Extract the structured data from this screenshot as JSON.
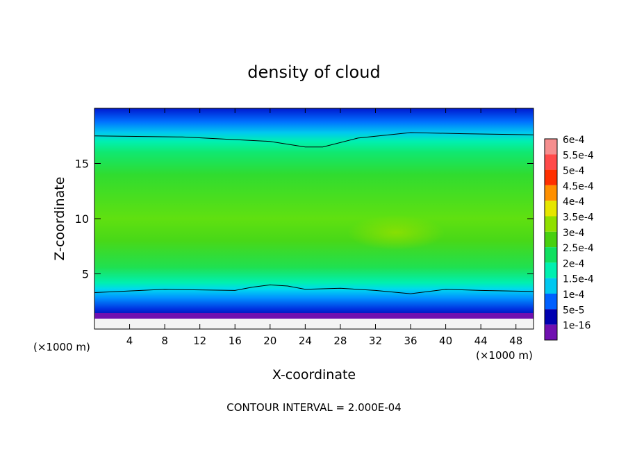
{
  "chart_data": {
    "type": "heatmap",
    "title": "density of cloud",
    "xlabel": "X-coordinate",
    "ylabel": "Z-coordinate",
    "x_unit": "(×1000 m)",
    "y_unit": "(×1000 m)",
    "x_ticks": [
      4,
      8,
      12,
      16,
      20,
      24,
      28,
      32,
      36,
      40,
      44,
      48
    ],
    "y_ticks": [
      5,
      10,
      15
    ],
    "xlim": [
      0,
      50
    ],
    "ylim": [
      0,
      20
    ],
    "footer": "CONTOUR INTERVAL = 2.000E-04",
    "contour_interval": 0.0002,
    "colorbar": {
      "labels": [
        "6e-4",
        "5.5e-4",
        "5e-4",
        "4.5e-4",
        "4e-4",
        "3.5e-4",
        "3e-4",
        "2.5e-4",
        "2e-4",
        "1.5e-4",
        "1e-4",
        "5e-5",
        "1e-16"
      ],
      "values": [
        0.0006,
        0.00055,
        0.0005,
        0.00045,
        0.0004,
        0.00035,
        0.0003,
        0.00025,
        0.0002,
        0.00015,
        0.0001,
        5e-05,
        1e-16
      ],
      "colors": [
        "#f58e8e",
        "#ff4a4a",
        "#ff3000",
        "#ff9000",
        "#e6e600",
        "#90e000",
        "#48d010",
        "#10e060",
        "#00f0b0",
        "#00c8f0",
        "#0060ff",
        "#0000b0",
        "#7010b0"
      ]
    },
    "profile": {
      "description": "density as a function of height, roughly uniform in x",
      "z": [
        0,
        1,
        2,
        3,
        3.5,
        4.5,
        6,
        8,
        10,
        12,
        14,
        16,
        17.5,
        18.5,
        20
      ],
      "density": [
        1e-16,
        3e-05,
        8e-05,
        0.00014,
        0.0002,
        0.00024,
        0.00029,
        0.00034,
        0.00035,
        0.00033,
        0.0003,
        0.00025,
        0.0002,
        0.00014,
        6e-05
      ]
    },
    "contour_lines": [
      {
        "level": 0.0002,
        "x": [
          0,
          10,
          20,
          24,
          26,
          30,
          36,
          42,
          50
        ],
        "z": [
          17.5,
          17.4,
          17.0,
          16.5,
          16.5,
          17.3,
          17.8,
          17.7,
          17.6
        ]
      },
      {
        "level": 0.0002,
        "x": [
          0,
          8,
          16,
          18,
          20,
          22,
          24,
          28,
          32,
          36,
          40,
          44,
          50
        ],
        "z": [
          3.3,
          3.6,
          3.5,
          3.8,
          4.0,
          3.9,
          3.6,
          3.7,
          3.5,
          3.2,
          3.6,
          3.5,
          3.4
        ]
      }
    ]
  }
}
